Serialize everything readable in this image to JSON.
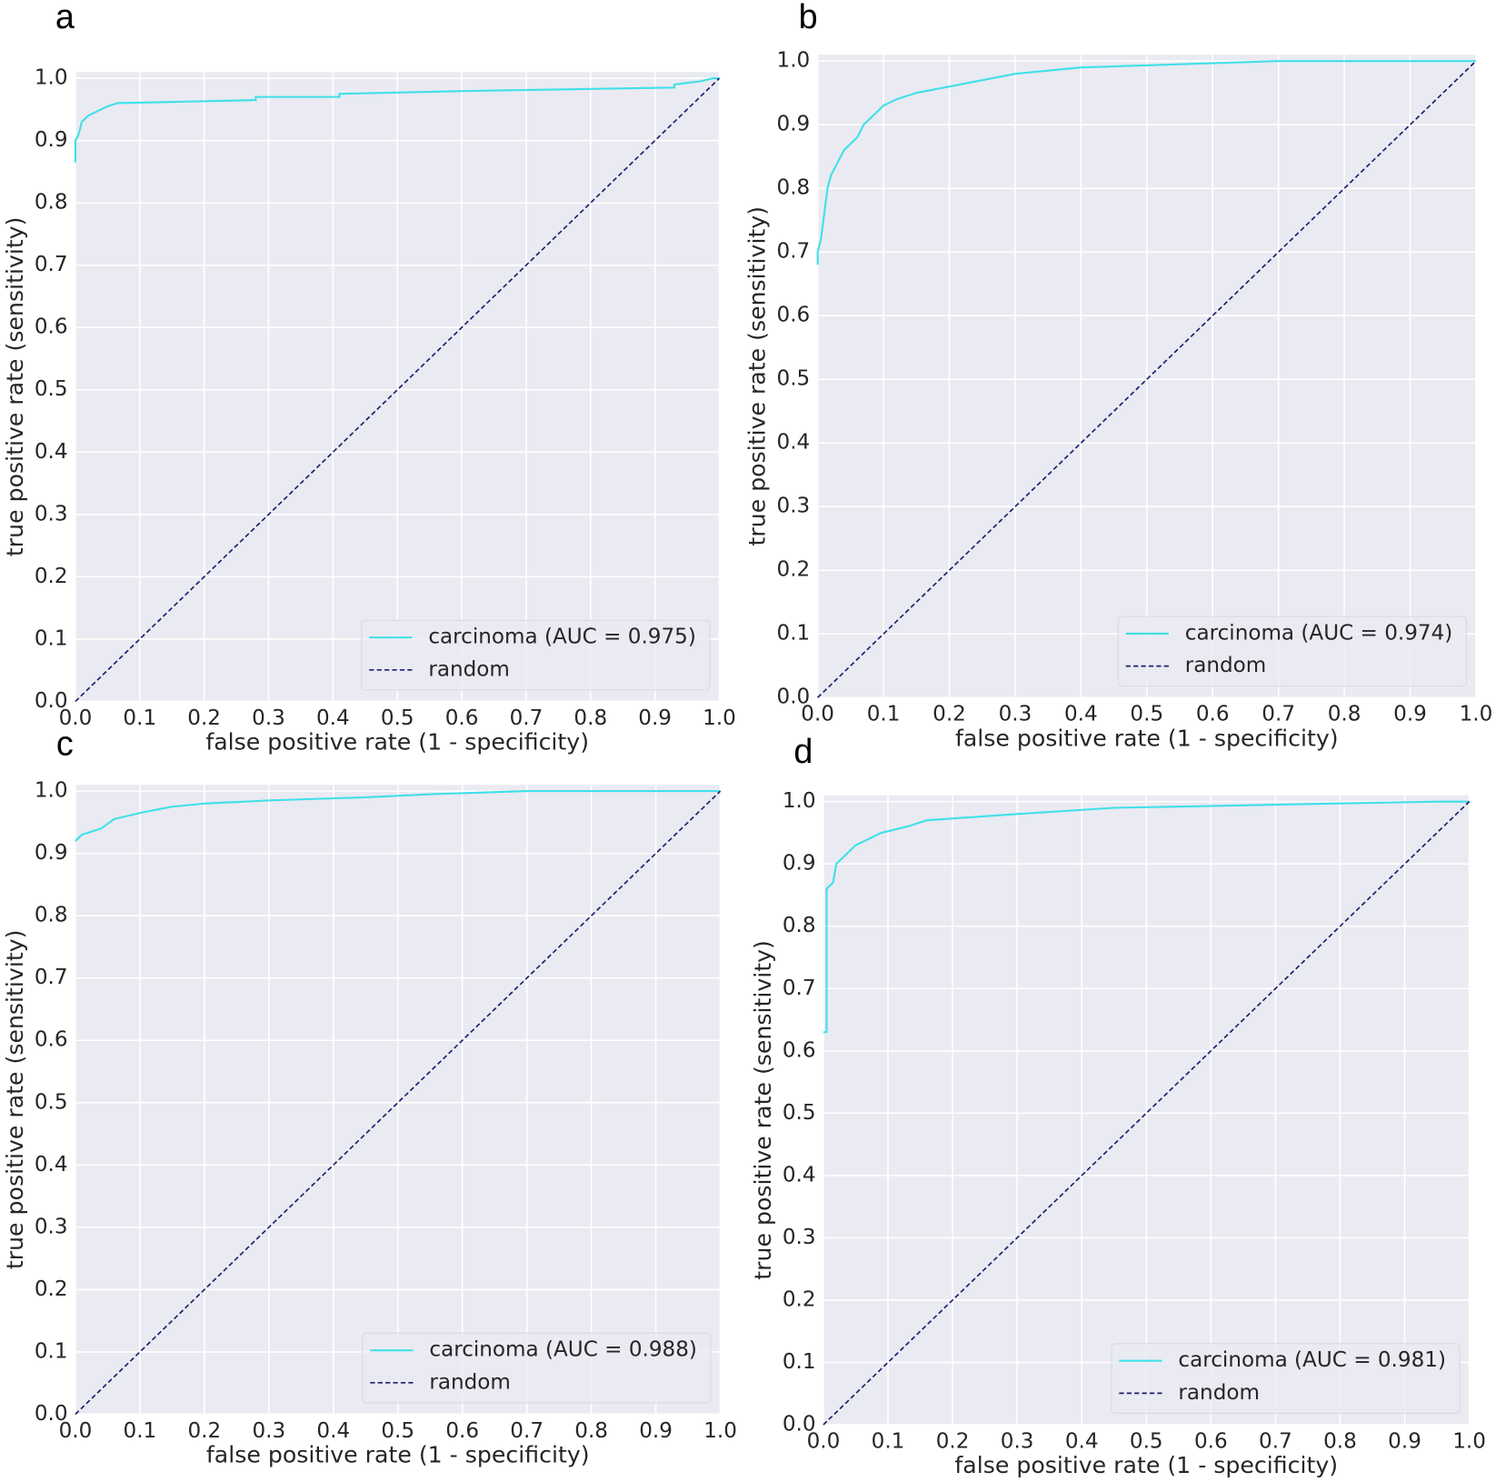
{
  "chart_data": [
    {
      "type": "line",
      "panel_label": "a",
      "xlabel": "false positive rate (1 - specificity)",
      "ylabel": "true positive rate (sensitivity)",
      "xlim": [
        0,
        1
      ],
      "ylim": [
        0,
        1.01
      ],
      "grid": true,
      "legend": "lower right",
      "xticks": [
        {
          "value": 0,
          "label": "0.0"
        },
        0.1,
        0.2,
        0.3,
        0.4,
        0.5,
        0.6,
        0.7,
        0.8,
        0.9,
        {
          "value": 1,
          "label": "1.0"
        }
      ],
      "yticks": [
        {
          "value": 0,
          "label": "0.0"
        },
        0.1,
        0.2,
        0.3,
        0.4,
        0.5,
        0.6,
        0.7,
        0.8,
        0.9,
        {
          "value": 1,
          "label": "1.0"
        }
      ],
      "series": [
        {
          "name": "carcinoma (AUC = 0.975)",
          "color": "#40e0e8",
          "dash": false,
          "x": [
            0,
            0,
            0.005,
            0.01,
            0.02,
            0.03,
            0.04,
            0.05,
            0.065,
            0.28,
            0.28,
            0.41,
            0.41,
            0.63,
            0.93,
            0.93,
            0.97,
            0.99,
            1
          ],
          "values": [
            0.865,
            0.9,
            0.91,
            0.93,
            0.94,
            0.945,
            0.95,
            0.955,
            0.96,
            0.965,
            0.97,
            0.97,
            0.975,
            0.98,
            0.985,
            0.99,
            0.995,
            1,
            1
          ]
        },
        {
          "name": "random",
          "color": "#1f1f6e",
          "dash": true,
          "x": [
            0,
            1
          ],
          "values": [
            0,
            1
          ]
        }
      ]
    },
    {
      "type": "line",
      "panel_label": "b",
      "xlabel": "false positive rate (1 - specificity)",
      "ylabel": "true positive rate (sensitivity)",
      "xlim": [
        0,
        1
      ],
      "ylim": [
        0,
        1.01
      ],
      "grid": true,
      "legend": "lower right",
      "xticks": [
        {
          "value": 0,
          "label": "0.0"
        },
        0.1,
        0.2,
        0.3,
        0.4,
        0.5,
        0.6,
        0.7,
        0.8,
        0.9,
        {
          "value": 1,
          "label": "1.0"
        }
      ],
      "yticks": [
        {
          "value": 0,
          "label": "0.0"
        },
        0.1,
        0.2,
        0.3,
        0.4,
        0.5,
        0.6,
        0.7,
        0.8,
        0.9,
        {
          "value": 1,
          "label": "1.0"
        }
      ],
      "series": [
        {
          "name": "carcinoma (AUC = 0.974)",
          "color": "#40e0e8",
          "dash": false,
          "x": [
            0,
            0,
            0.005,
            0.01,
            0.015,
            0.02,
            0.025,
            0.03,
            0.04,
            0.05,
            0.06,
            0.07,
            0.08,
            0.1,
            0.12,
            0.15,
            0.2,
            0.25,
            0.3,
            0.35,
            0.4,
            0.7,
            1
          ],
          "values": [
            0.68,
            0.7,
            0.72,
            0.76,
            0.8,
            0.82,
            0.83,
            0.84,
            0.86,
            0.87,
            0.88,
            0.9,
            0.91,
            0.93,
            0.94,
            0.95,
            0.96,
            0.97,
            0.98,
            0.985,
            0.99,
            1,
            1
          ]
        },
        {
          "name": "random",
          "color": "#1f1f6e",
          "dash": true,
          "x": [
            0,
            1
          ],
          "values": [
            0,
            1
          ]
        }
      ]
    },
    {
      "type": "line",
      "panel_label": "c",
      "xlabel": "false positive rate (1 - specificity)",
      "ylabel": "true positive rate (sensitivity)",
      "xlim": [
        0,
        1
      ],
      "ylim": [
        0,
        1.01
      ],
      "grid": true,
      "legend": "lower right",
      "xticks": [
        {
          "value": 0,
          "label": "0.0"
        },
        0.1,
        0.2,
        0.3,
        0.4,
        0.5,
        0.6,
        0.7,
        0.8,
        0.9,
        {
          "value": 1,
          "label": "1.0"
        }
      ],
      "yticks": [
        {
          "value": 0,
          "label": "0.0"
        },
        0.1,
        0.2,
        0.3,
        0.4,
        0.5,
        0.6,
        0.7,
        0.8,
        0.9,
        {
          "value": 1,
          "label": "1.0"
        }
      ],
      "series": [
        {
          "name": "carcinoma (AUC = 0.988)",
          "color": "#40e0e8",
          "dash": false,
          "x": [
            0,
            0.01,
            0.04,
            0.06,
            0.08,
            0.1,
            0.15,
            0.2,
            0.3,
            0.45,
            0.55,
            0.7,
            1
          ],
          "values": [
            0.92,
            0.93,
            0.94,
            0.955,
            0.96,
            0.965,
            0.975,
            0.98,
            0.985,
            0.99,
            0.995,
            1,
            1
          ]
        },
        {
          "name": "random",
          "color": "#1f1f6e",
          "dash": true,
          "x": [
            0,
            1
          ],
          "values": [
            0,
            1
          ]
        }
      ]
    },
    {
      "type": "line",
      "panel_label": "d",
      "xlabel": "false positive rate (1 - specificity)",
      "ylabel": "true positive rate (sensitivity)",
      "xlim": [
        0,
        1
      ],
      "ylim": [
        0,
        1.01
      ],
      "grid": true,
      "legend": "lower right",
      "xticks": [
        {
          "value": 0,
          "label": "0.0"
        },
        0.1,
        0.2,
        0.3,
        0.4,
        0.5,
        0.6,
        0.7,
        0.8,
        0.9,
        {
          "value": 1,
          "label": "1.0"
        }
      ],
      "yticks": [
        {
          "value": 0,
          "label": "0.0"
        },
        0.1,
        0.2,
        0.3,
        0.4,
        0.5,
        0.6,
        0.7,
        0.8,
        0.9,
        {
          "value": 1,
          "label": "1.0"
        }
      ],
      "series": [
        {
          "name": "carcinoma (AUC = 0.981)",
          "color": "#40e0e8",
          "dash": false,
          "x": [
            0,
            0.005,
            0.005,
            0.015,
            0.02,
            0.03,
            0.05,
            0.07,
            0.09,
            0.13,
            0.16,
            0.3,
            0.45,
            0.7,
            0.95,
            1
          ],
          "values": [
            0.63,
            0.63,
            0.86,
            0.87,
            0.9,
            0.91,
            0.93,
            0.94,
            0.95,
            0.96,
            0.97,
            0.98,
            0.99,
            0.995,
            1,
            1
          ]
        },
        {
          "name": "random",
          "color": "#1f1f6e",
          "dash": true,
          "x": [
            0,
            1
          ],
          "values": [
            0,
            1
          ]
        }
      ]
    }
  ]
}
